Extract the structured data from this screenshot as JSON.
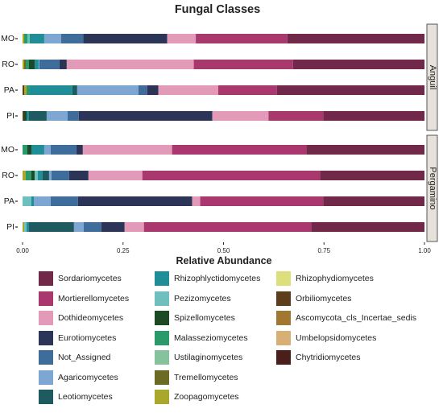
{
  "chart_data": {
    "type": "bar",
    "orientation": "horizontal",
    "stacked": true,
    "title": "Fungal Classes",
    "xlabel": "Relative Abundance",
    "ylabel": "",
    "xlim": [
      0,
      1
    ],
    "x_ticks": [
      "0.00",
      "0.25",
      "0.50",
      "0.75",
      "1.00"
    ],
    "grid": false,
    "legend_position": "bottom",
    "facets": [
      "Anguil",
      "Pergamino"
    ],
    "categories": [
      "MO",
      "RO",
      "PA",
      "PI"
    ],
    "classes": [
      {
        "name": "Sordariomycetes",
        "color": "#722848"
      },
      {
        "name": "Mortierellomycetes",
        "color": "#A8386E"
      },
      {
        "name": "Dothideomycetes",
        "color": "#E39AB9"
      },
      {
        "name": "Eurotiomycetes",
        "color": "#2C3558"
      },
      {
        "name": "Not_Assigned",
        "color": "#3E6D9C"
      },
      {
        "name": "Agaricomycetes",
        "color": "#7EA6D3"
      },
      {
        "name": "Leotiomycetes",
        "color": "#1E5A60"
      },
      {
        "name": "Rhizophlyctidomycetes",
        "color": "#1F8E96"
      },
      {
        "name": "Pezizomycetes",
        "color": "#6FBFBE"
      },
      {
        "name": "Spizellomycetes",
        "color": "#1C4A25"
      },
      {
        "name": "Malasseziomycetes",
        "color": "#2A9A6A"
      },
      {
        "name": "Ustilaginomycetes",
        "color": "#86C39D"
      },
      {
        "name": "Tremellomycetes",
        "color": "#6B6B25"
      },
      {
        "name": "Zoopagomycetes",
        "color": "#A9A72C"
      },
      {
        "name": "Rhizophydiomycetes",
        "color": "#DDE07A"
      },
      {
        "name": "Orbiliomycetes",
        "color": "#5E3D1D"
      },
      {
        "name": "Ascomycota_cls_Incertae_sedis",
        "color": "#A07830"
      },
      {
        "name": "Umbelopsidomycetes",
        "color": "#D8B075"
      },
      {
        "name": "Chytridiomycetes",
        "color": "#4A1E1A"
      }
    ],
    "series_stack_order": [
      "Chytridiomycetes",
      "Umbelopsidomycetes",
      "Ascomycota_cls_Incertae_sedis",
      "Orbiliomycetes",
      "Rhizophydiomycetes",
      "Zoopagomycetes",
      "Tremellomycetes",
      "Ustilaginomycetes",
      "Malasseziomycetes",
      "Spizellomycetes",
      "Pezizomycetes",
      "Rhizophlyctidomycetes",
      "Leotiomycetes",
      "Agaricomycetes",
      "Not_Assigned",
      "Eurotiomycetes",
      "Dothideomycetes",
      "Mortierellomycetes",
      "Sordariomycetes"
    ],
    "panels": [
      {
        "facet": "Anguil",
        "bars": [
          {
            "category": "MO",
            "values": {
              "Zoopagomycetes": 0.004,
              "Rhizophlyctidomycetes": 0.036,
              "Malasseziomycetes": 0.008,
              "Pezizomycetes": 0.006,
              "Agaricomycetes": 0.042,
              "Not_Assigned": 0.055,
              "Eurotiomycetes": 0.209,
              "Dothideomycetes": 0.071,
              "Mortierellomycetes": 0.228,
              "Sordariomycetes": 0.341
            }
          },
          {
            "category": "RO",
            "values": {
              "Tremellomycetes": 0.004,
              "Zoopagomycetes": 0.004,
              "Malasseziomycetes": 0.008,
              "Rhizophlyctidomycetes": 0.01,
              "Spizellomycetes": 0.014,
              "Agaricomycetes": 0.002,
              "Not_Assigned": 0.05,
              "Eurotiomycetes": 0.018,
              "Dothideomycetes": 0.316,
              "Mortierellomycetes": 0.247,
              "Sordariomycetes": 0.327
            }
          },
          {
            "category": "PA",
            "values": {
              "Zoopagomycetes": 0.006,
              "Orbiliomycetes": 0.004,
              "Malasseziomycetes": 0.008,
              "Rhizophlyctidomycetes": 0.106,
              "Leotiomycetes": 0.012,
              "Agaricomycetes": 0.152,
              "Not_Assigned": 0.022,
              "Eurotiomycetes": 0.028,
              "Dothideomycetes": 0.149,
              "Mortierellomycetes": 0.146,
              "Sordariomycetes": 0.367
            }
          },
          {
            "category": "PI",
            "values": {
              "Orbiliomycetes": 0.004,
              "Rhizophlyctidomycetes": 0.006,
              "Spizellomycetes": 0.006,
              "Leotiomycetes": 0.044,
              "Agaricomycetes": 0.052,
              "Not_Assigned": 0.028,
              "Eurotiomycetes": 0.332,
              "Dothideomycetes": 0.14,
              "Mortierellomycetes": 0.136,
              "Sordariomycetes": 0.252
            }
          }
        ]
      },
      {
        "facet": "Pergamino",
        "bars": [
          {
            "category": "MO",
            "values": {
              "Rhizophlyctidomycetes": 0.008,
              "Spizellomycetes": 0.01,
              "Malasseziomycetes": 0.012,
              "Rhizophlyctidomycetes_2": 0.024,
              "Agaricomycetes": 0.016,
              "Not_Assigned": 0.064,
              "Eurotiomycetes": 0.016,
              "Dothideomycetes": 0.222,
              "Mortierellomycetes": 0.334,
              "Sordariomycetes": 0.294
            }
          },
          {
            "category": "RO",
            "values": {
              "Zoopagomycetes": 0.008,
              "Pezizomycetes": 0.008,
              "Malasseziomycetes": 0.014,
              "Spizellomycetes": 0.008,
              "Rhizophlyctidomycetes": 0.012,
              "Leotiomycetes": 0.016,
              "Agaricomycetes": 0.006,
              "Not_Assigned": 0.044,
              "Eurotiomycetes": 0.048,
              "Dothideomycetes": 0.134,
              "Mortierellomycetes": 0.442,
              "Sordariomycetes": 0.26
            }
          },
          {
            "category": "PA",
            "values": {
              "Rhizophlyctidomycetes": 0.006,
              "Pezizomycetes": 0.022,
              "Agaricomycetes": 0.042,
              "Not_Assigned": 0.068,
              "Eurotiomycetes": 0.284,
              "Dothideomycetes": 0.02,
              "Mortierellomycetes": 0.306,
              "Sordariomycetes": 0.252
            }
          },
          {
            "category": "PI",
            "values": {
              "Zoopagomycetes": 0.004,
              "Rhizophlyctidomycetes": 0.006,
              "Pezizomycetes": 0.006,
              "Leotiomycetes": 0.112,
              "Agaricomycetes": 0.024,
              "Not_Assigned": 0.044,
              "Eurotiomycetes": 0.058,
              "Dothideomycetes": 0.048,
              "Mortierellomycetes": 0.416,
              "Sordariomycetes": 0.282
            }
          }
        ]
      }
    ]
  }
}
